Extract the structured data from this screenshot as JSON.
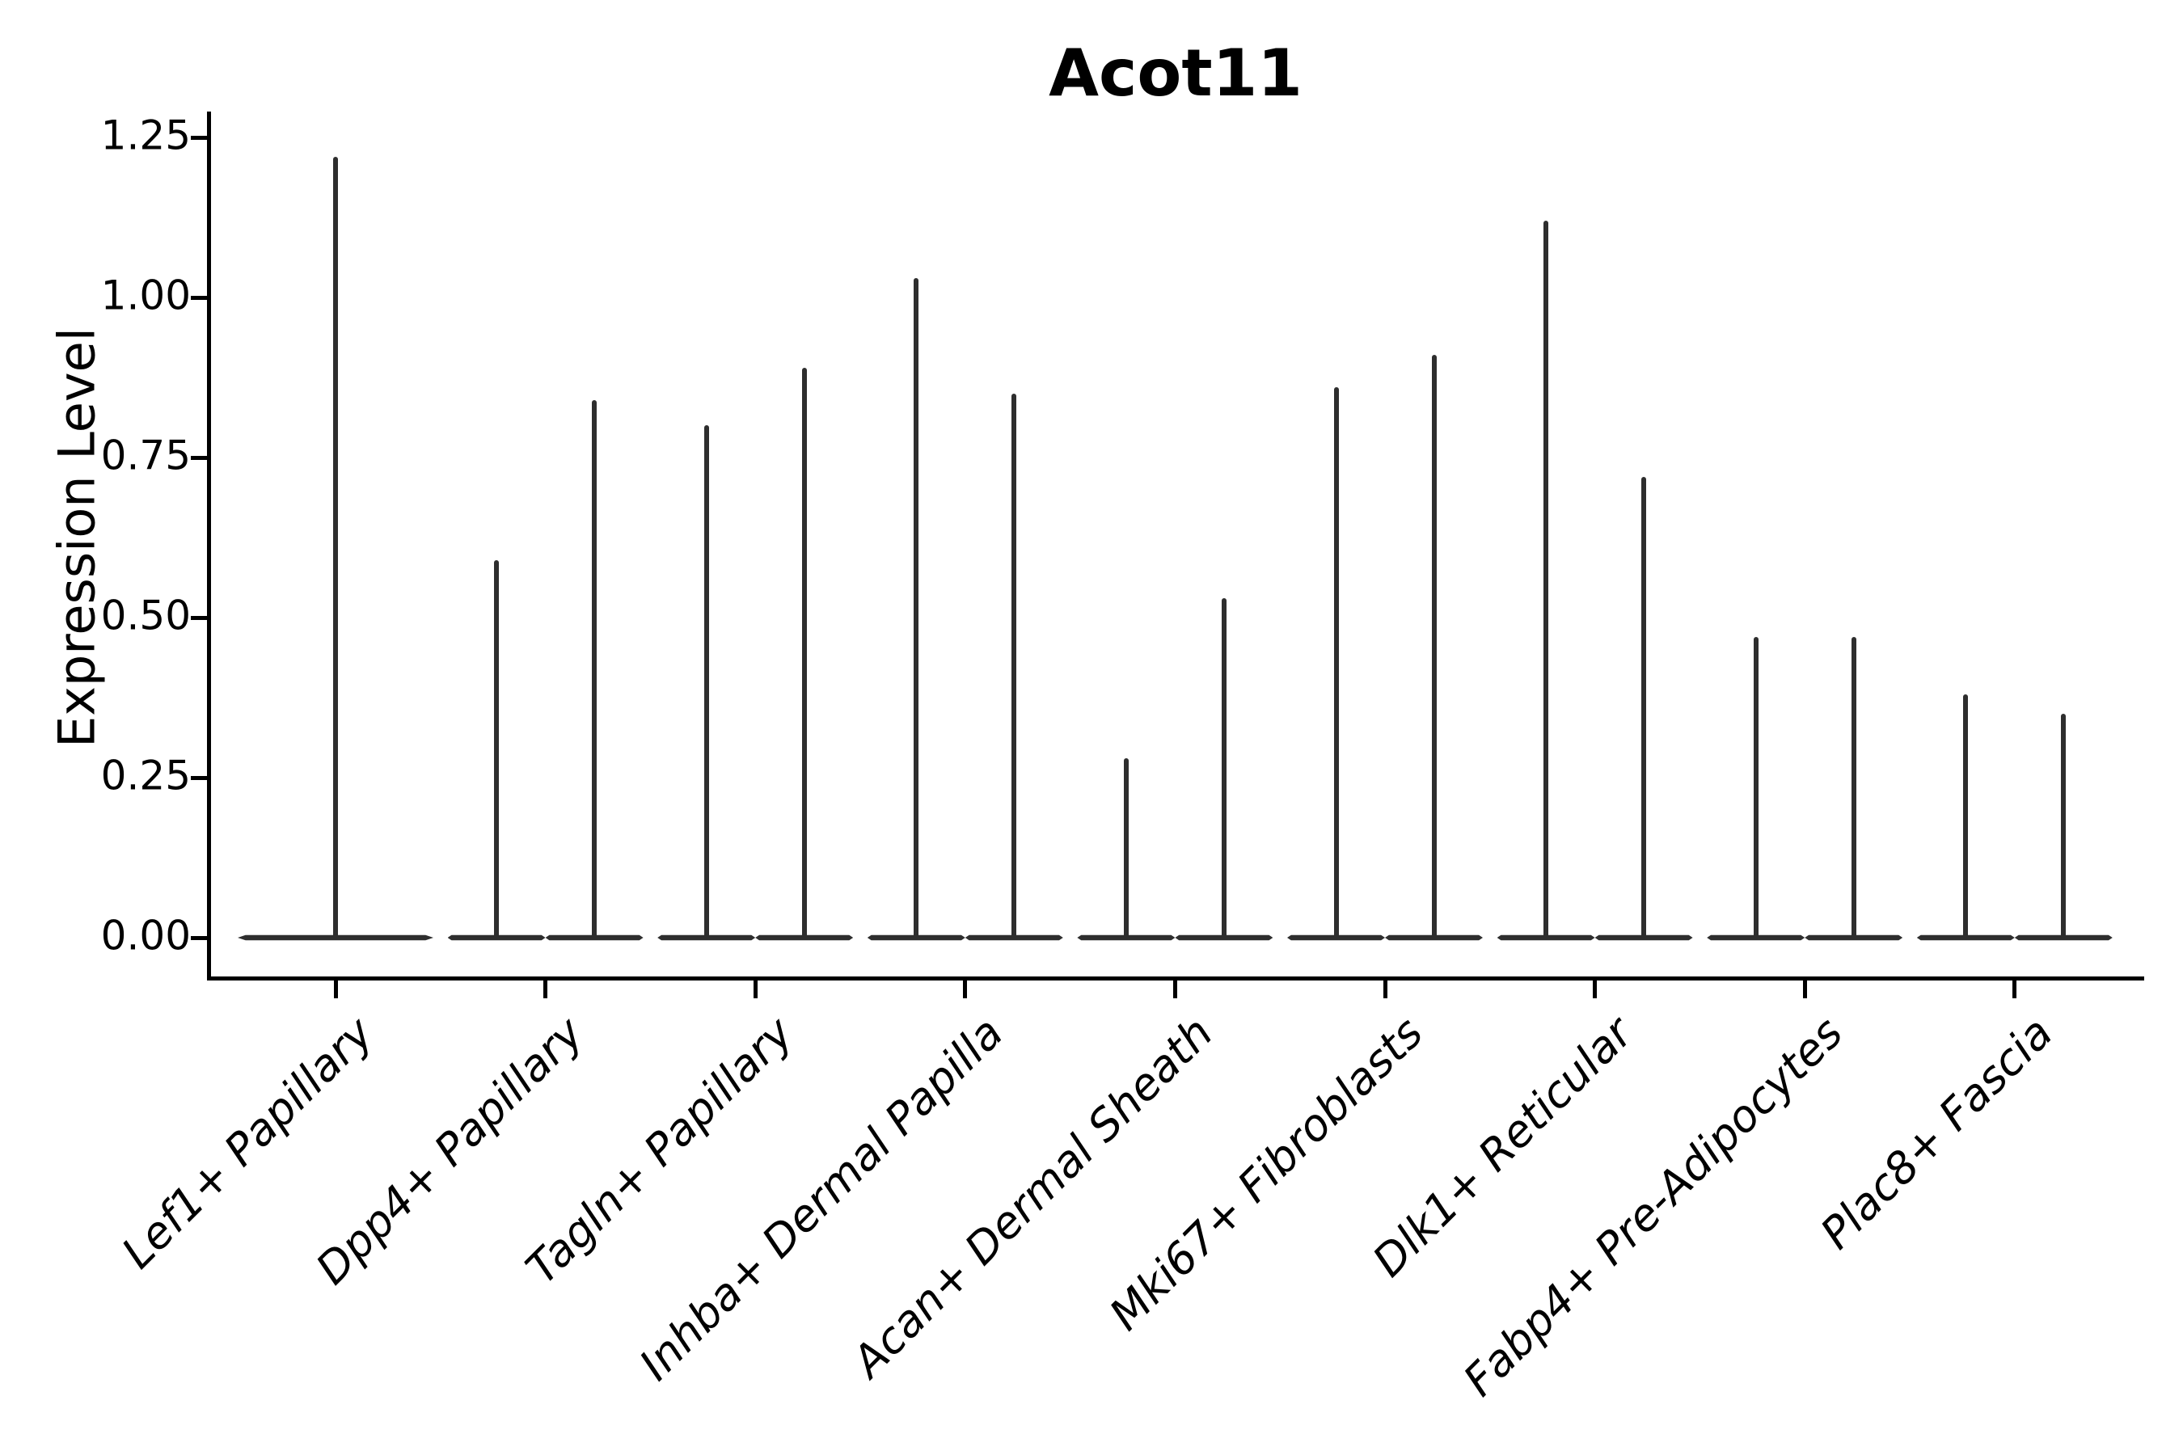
{
  "title": "Acot11",
  "colors": {
    "background": "#ffffff",
    "violin_stroke": "#2e2e2e",
    "axis": "#000000",
    "text": "#000000"
  },
  "chart_data": {
    "type": "violin",
    "title": "Acot11",
    "xlabel": "",
    "ylabel": "Expression Level",
    "grid": false,
    "legend_position": "none",
    "ylim": [
      -0.05,
      1.29
    ],
    "ytick_labels": [
      "0.00",
      "0.25",
      "0.50",
      "0.75",
      "1.00",
      "1.25"
    ],
    "ytick_values": [
      0.0,
      0.25,
      0.5,
      0.75,
      1.0,
      1.25
    ],
    "categories": [
      "Lef1+ Papillary",
      "Dpp4+ Papillary",
      "Tagln+ Papillary",
      "Inhba+ Dermal Papilla",
      "Acan+ Dermal Sheath",
      "Mki67+ Fibroblasts",
      "Dlk1+ Reticular",
      "Fabp4+ Pre-Adipocytes",
      "Plac8+ Fascia"
    ],
    "violins": [
      {
        "category": "Lef1+ Papillary",
        "spike_maxima": [
          1.22
        ]
      },
      {
        "category": "Dpp4+ Papillary",
        "spike_maxima": [
          0.59,
          0.84
        ]
      },
      {
        "category": "Tagln+ Papillary",
        "spike_maxima": [
          0.8,
          0.89
        ]
      },
      {
        "category": "Inhba+ Dermal Papilla",
        "spike_maxima": [
          1.03,
          0.85
        ]
      },
      {
        "category": "Acan+ Dermal Sheath",
        "spike_maxima": [
          0.28,
          0.53
        ]
      },
      {
        "category": "Mki67+ Fibroblasts",
        "spike_maxima": [
          0.86,
          0.91
        ]
      },
      {
        "category": "Dlk1+ Reticular",
        "spike_maxima": [
          1.12,
          0.72
        ]
      },
      {
        "category": "Fabp4+ Pre-Adipocytes",
        "spike_maxima": [
          0.47,
          0.47
        ]
      },
      {
        "category": "Plac8+ Fascia",
        "spike_maxima": [
          0.38,
          0.35
        ]
      }
    ],
    "violin_note": "Each violin is a near-zero-width density: a flat lens at expression 0 with a thin spike up to the category maximum. First category has one violin; all others have two side-by-side."
  }
}
